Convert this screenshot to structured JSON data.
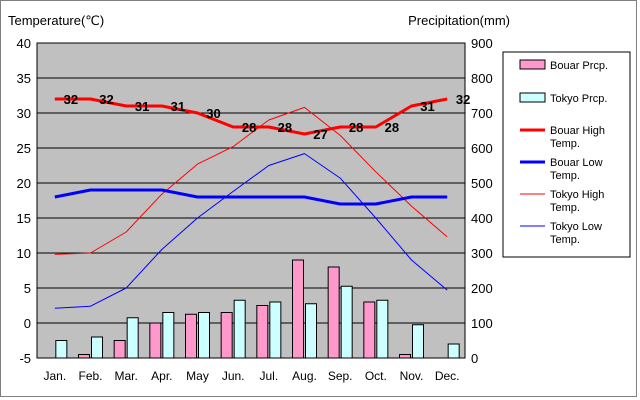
{
  "chart_data": {
    "type": "bar+line",
    "left_axis_title": "Temperature(℃)",
    "right_axis_title": "Precipitation(mm)",
    "categories": [
      "Jan.",
      "Feb.",
      "Mar.",
      "Apr.",
      "May",
      "Jun.",
      "Jul.",
      "Aug.",
      "Sep.",
      "Oct.",
      "Nov.",
      "Dec."
    ],
    "temp_axis": {
      "min": -5,
      "max": 40,
      "step": 5
    },
    "precip_axis": {
      "min": 0,
      "max": 900,
      "step": 100
    },
    "bar_series": [
      {
        "name": "Bouar Prcp.",
        "color": "#ff99cc",
        "values": [
          0,
          10,
          50,
          100,
          125,
          130,
          150,
          280,
          260,
          160,
          10,
          0
        ]
      },
      {
        "name": "Tokyo Prcp.",
        "color": "#ccffff",
        "values": [
          50,
          60,
          115,
          130,
          130,
          165,
          160,
          155,
          205,
          165,
          95,
          40
        ]
      }
    ],
    "line_series": [
      {
        "name": "Bouar High Temp.",
        "color": "#ff0000",
        "width": 3,
        "values": [
          32,
          32,
          31,
          31,
          30,
          28,
          28,
          27,
          28,
          28,
          31,
          32
        ],
        "labels": [
          "32",
          "32",
          "31",
          "31",
          "30",
          "28",
          "28",
          "27",
          "28",
          "28",
          "31",
          "32"
        ]
      },
      {
        "name": "Bouar Low Temp.",
        "color": "#0000ff",
        "width": 3,
        "values": [
          18,
          19,
          19,
          19,
          18,
          18,
          18,
          18,
          17,
          17,
          18,
          18
        ]
      },
      {
        "name": "Tokyo High Temp.",
        "color": "#ff0000",
        "width": 1,
        "values": [
          9.8,
          10,
          13,
          18.4,
          22.7,
          25.2,
          29,
          30.8,
          26.8,
          21.6,
          16.7,
          12.3
        ]
      },
      {
        "name": "Tokyo Low Temp.",
        "color": "#0000ff",
        "width": 1,
        "values": [
          2.1,
          2.4,
          5,
          10.5,
          15,
          18.8,
          22.5,
          24.2,
          20.7,
          15,
          9,
          4.7
        ]
      }
    ]
  }
}
